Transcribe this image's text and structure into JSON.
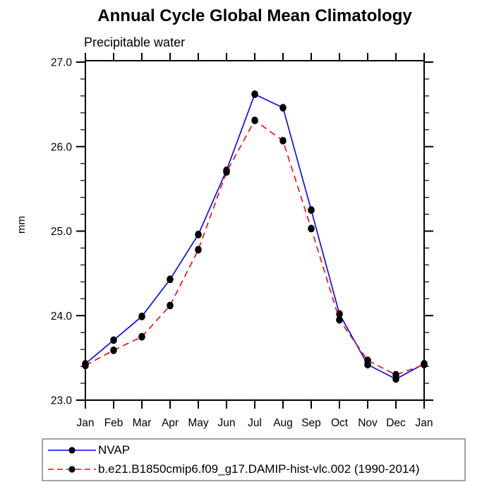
{
  "header": {
    "title": "Annual Cycle Global Mean Climatology"
  },
  "chart_data": {
    "type": "line",
    "title": "Annual Cycle Global Mean Climatology",
    "subtitle": "Precipitable water",
    "xlabel": "",
    "ylabel": "mm",
    "categories": [
      "Jan",
      "Feb",
      "Mar",
      "Apr",
      "May",
      "Jun",
      "Jul",
      "Aug",
      "Sep",
      "Oct",
      "Nov",
      "Dec",
      "Jan"
    ],
    "ylim": [
      23.0,
      27.0
    ],
    "ytick_major_step": 1.0,
    "ytick_minor_step": 0.2,
    "ytick_labels": [
      "23.0",
      "24.0",
      "25.0",
      "26.0",
      "27.0"
    ],
    "grid": false,
    "legend_position": "bottom-left",
    "marker_color": "#000000",
    "axis_color": "#000000",
    "series": [
      {
        "name": "NVAP",
        "color": "#0000ff",
        "style": "solid",
        "marker": "circle",
        "values": [
          23.43,
          23.71,
          23.99,
          24.43,
          24.96,
          25.72,
          26.62,
          26.46,
          25.25,
          24.02,
          23.42,
          23.25,
          23.43
        ]
      },
      {
        "name": "b.e21.B1850cmip6.f09_g17.DAMIP-hist-vlc.002 (1990-2014)",
        "color": "#ff0000",
        "style": "dashed",
        "marker": "circle",
        "values": [
          23.41,
          23.59,
          23.75,
          24.12,
          24.78,
          25.7,
          26.31,
          26.07,
          25.03,
          23.95,
          23.47,
          23.3,
          23.42
        ]
      }
    ]
  },
  "legend": {
    "items": [
      {
        "label": "NVAP"
      },
      {
        "label": "b.e21.B1850cmip6.f09_g17.DAMIP-hist-vlc.002 (1990-2014)"
      }
    ]
  }
}
